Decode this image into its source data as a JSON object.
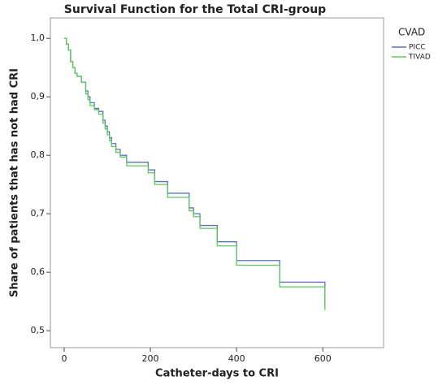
{
  "chart_data": {
    "type": "step",
    "title": "Survival Function for the Total CRI-group",
    "x_label": "Catheter-days to CRI",
    "y_label": "Share of patients that has not had CRI",
    "legend_title": "CVAD",
    "legend_position": "right",
    "xlim": [
      -32,
      741
    ],
    "xticks": [
      0,
      200,
      400,
      600
    ],
    "ylim": [
      0.471,
      1.035
    ],
    "yticks": [
      {
        "value": 0.5,
        "label": "0,5"
      },
      {
        "value": 0.6,
        "label": "0,6"
      },
      {
        "value": 0.7,
        "label": "0,7"
      },
      {
        "value": 0.8,
        "label": "0,8"
      },
      {
        "value": 0.9,
        "label": "0,9"
      },
      {
        "value": 1.0,
        "label": "1,0"
      }
    ],
    "series": [
      {
        "name": "PICC",
        "color": "#5a6fc0",
        "x": [
          0,
          5,
          10,
          15,
          20,
          25,
          30,
          40,
          50,
          55,
          60,
          70,
          80,
          90,
          95,
          100,
          105,
          110,
          120,
          130,
          145,
          195,
          210,
          240,
          290,
          300,
          315,
          355,
          400,
          500,
          605
        ],
        "values": [
          1.0,
          0.99,
          0.98,
          0.96,
          0.95,
          0.94,
          0.935,
          0.925,
          0.91,
          0.9,
          0.89,
          0.88,
          0.875,
          0.86,
          0.85,
          0.84,
          0.83,
          0.82,
          0.81,
          0.8,
          0.788,
          0.775,
          0.755,
          0.735,
          0.71,
          0.7,
          0.68,
          0.652,
          0.62,
          0.583,
          0.54
        ]
      },
      {
        "name": "TIVAD",
        "color": "#5cc85c",
        "x": [
          0,
          5,
          10,
          15,
          20,
          25,
          30,
          40,
          50,
          55,
          60,
          70,
          80,
          90,
          95,
          100,
          105,
          110,
          120,
          130,
          145,
          195,
          210,
          240,
          290,
          300,
          315,
          355,
          400,
          500,
          605
        ],
        "values": [
          1.0,
          0.99,
          0.98,
          0.96,
          0.95,
          0.94,
          0.935,
          0.925,
          0.905,
          0.895,
          0.885,
          0.878,
          0.87,
          0.855,
          0.845,
          0.835,
          0.825,
          0.815,
          0.805,
          0.797,
          0.782,
          0.77,
          0.75,
          0.728,
          0.705,
          0.695,
          0.675,
          0.645,
          0.612,
          0.575,
          0.535
        ]
      }
    ]
  }
}
